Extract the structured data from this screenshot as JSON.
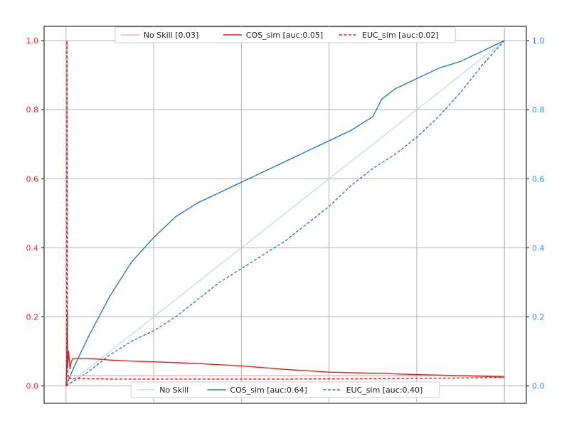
{
  "chart_data": {
    "type": "line",
    "title": "",
    "xlabel": "",
    "ylabel_left": "",
    "ylabel_right": "",
    "grid": true,
    "xlim": [
      -0.05,
      1.05
    ],
    "x_ticks": [
      0,
      0.2,
      0.4,
      0.6,
      0.8,
      1.0
    ],
    "left_axis": {
      "color": "#ff2a2a",
      "ylim": [
        0.0,
        1.0
      ],
      "ticks": [
        0.0,
        0.2,
        0.4,
        0.6,
        0.8,
        1.0
      ],
      "tick_labels": [
        "0.0",
        "0.2",
        "0.4",
        "0.6",
        "0.8",
        "1.0"
      ],
      "legend_position": "top-center",
      "series": [
        {
          "name": "No Skill [0.03]",
          "color": "#f4b3b3",
          "style": "solid",
          "points": [
            [
              0,
              0.03
            ],
            [
              1.0,
              0.03
            ]
          ]
        },
        {
          "name": "COS_sim [auc:0.05]",
          "color": "#e01f1f",
          "style": "solid",
          "points": [
            [
              0,
              0.0
            ],
            [
              0.001,
              0.02
            ],
            [
              0.002,
              0.1
            ],
            [
              0.003,
              0.22
            ],
            [
              0.004,
              0.06
            ],
            [
              0.006,
              0.1
            ],
            [
              0.009,
              0.05
            ],
            [
              0.012,
              0.07
            ],
            [
              0.016,
              0.08
            ],
            [
              0.02,
              0.08
            ],
            [
              0.03,
              0.08
            ],
            [
              0.05,
              0.08
            ],
            [
              0.1,
              0.075
            ],
            [
              0.15,
              0.072
            ],
            [
              0.2,
              0.07
            ],
            [
              0.3,
              0.065
            ],
            [
              0.4,
              0.058
            ],
            [
              0.5,
              0.048
            ],
            [
              0.6,
              0.04
            ],
            [
              0.7,
              0.037
            ],
            [
              0.8,
              0.033
            ],
            [
              0.9,
              0.03
            ],
            [
              1.0,
              0.026
            ]
          ]
        },
        {
          "name": "EUC_sim [auc:0.02]",
          "color": "#e01f1f",
          "style": "dashed",
          "points": [
            [
              0,
              0.0
            ],
            [
              0.0015,
              0.005
            ],
            [
              0.002,
              1.0
            ],
            [
              0.003,
              0.08
            ],
            [
              0.005,
              0.02
            ],
            [
              0.01,
              0.022
            ],
            [
              0.05,
              0.021
            ],
            [
              0.1,
              0.02
            ],
            [
              0.3,
              0.02
            ],
            [
              0.5,
              0.02
            ],
            [
              0.7,
              0.021
            ],
            [
              0.9,
              0.023
            ],
            [
              1.0,
              0.025
            ]
          ]
        }
      ]
    },
    "right_axis": {
      "color": "#1e90ff",
      "ylim": [
        0.0,
        1.0
      ],
      "ticks": [
        0.0,
        0.2,
        0.4,
        0.6,
        0.8,
        1.0
      ],
      "tick_labels": [
        "0.0",
        "0.2",
        "0.4",
        "0.6",
        "0.8",
        "1.0"
      ],
      "legend_position": "bottom-center",
      "series": [
        {
          "name": "No Skill",
          "color": "#c8dde8",
          "style": "solid",
          "points": [
            [
              0,
              0
            ],
            [
              1.0,
              1.0
            ]
          ]
        },
        {
          "name": "COS_sim [auc:0.64]",
          "color": "#2b7bb9",
          "style": "solid",
          "points": [
            [
              0,
              0
            ],
            [
              0.02,
              0.06
            ],
            [
              0.05,
              0.14
            ],
            [
              0.1,
              0.26
            ],
            [
              0.15,
              0.36
            ],
            [
              0.2,
              0.43
            ],
            [
              0.25,
              0.49
            ],
            [
              0.3,
              0.53
            ],
            [
              0.35,
              0.56
            ],
            [
              0.4,
              0.59
            ],
            [
              0.45,
              0.62
            ],
            [
              0.5,
              0.65
            ],
            [
              0.55,
              0.68
            ],
            [
              0.6,
              0.71
            ],
            [
              0.65,
              0.74
            ],
            [
              0.7,
              0.78
            ],
            [
              0.72,
              0.83
            ],
            [
              0.75,
              0.86
            ],
            [
              0.8,
              0.89
            ],
            [
              0.85,
              0.92
            ],
            [
              0.9,
              0.94
            ],
            [
              0.95,
              0.97
            ],
            [
              1.0,
              1.0
            ]
          ]
        },
        {
          "name": "EUC_sim [auc:0.40]",
          "color": "#2b7bb9",
          "style": "dashed",
          "points": [
            [
              0,
              0
            ],
            [
              0.05,
              0.04
            ],
            [
              0.1,
              0.09
            ],
            [
              0.15,
              0.13
            ],
            [
              0.2,
              0.16
            ],
            [
              0.25,
              0.2
            ],
            [
              0.3,
              0.25
            ],
            [
              0.35,
              0.3
            ],
            [
              0.4,
              0.34
            ],
            [
              0.45,
              0.38
            ],
            [
              0.5,
              0.42
            ],
            [
              0.55,
              0.47
            ],
            [
              0.6,
              0.52
            ],
            [
              0.65,
              0.58
            ],
            [
              0.7,
              0.63
            ],
            [
              0.75,
              0.67
            ],
            [
              0.8,
              0.72
            ],
            [
              0.85,
              0.78
            ],
            [
              0.9,
              0.85
            ],
            [
              0.95,
              0.93
            ],
            [
              1.0,
              1.0
            ]
          ]
        }
      ]
    }
  }
}
